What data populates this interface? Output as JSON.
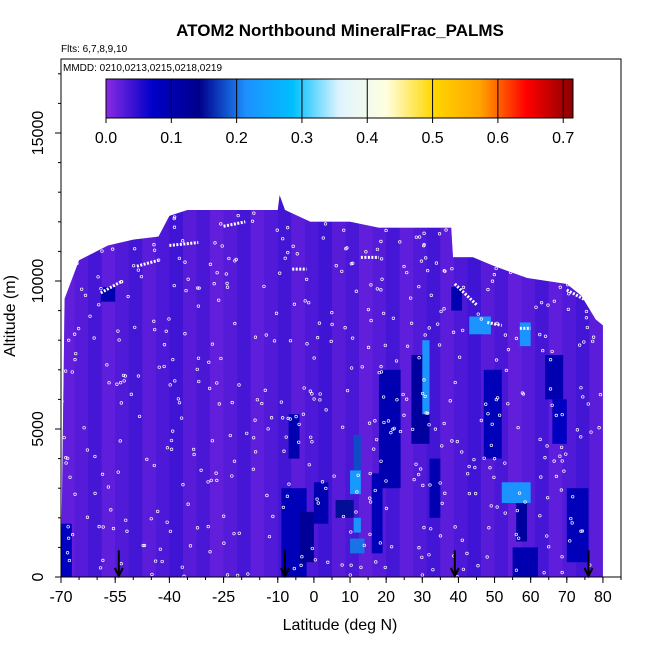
{
  "chart_data": {
    "type": "heatmap",
    "title": "ATOM2 Northbound MineralFrac_PALMS",
    "flights_note": "Flts: 6,7,8,9,10",
    "dates_note": "MMDD: 0210,0213,0215,0218,0219",
    "xlabel": "Latitude (deg N)",
    "ylabel": "Altitude (m)",
    "xlim": [
      -70,
      85
    ],
    "ylim": [
      0,
      17500
    ],
    "xticks": [
      -70,
      -55,
      -40,
      -25,
      -10,
      0,
      10,
      20,
      30,
      40,
      50,
      60,
      70,
      80
    ],
    "xtick_labels": [
      "-70",
      "-55",
      "-40",
      "-25",
      "-10",
      "0",
      "10",
      "20",
      "30",
      "40",
      "50",
      "60",
      "70",
      "80"
    ],
    "yticks": [
      0,
      5000,
      10000,
      15000
    ],
    "ytick_labels": [
      "0",
      "5000",
      "10000",
      "15000"
    ],
    "colorbar": {
      "min": 0.0,
      "max": 0.715,
      "ticks": [
        0.0,
        0.1,
        0.2,
        0.3,
        0.4,
        0.5,
        0.6,
        0.7
      ],
      "tick_labels": [
        "0.0",
        "0.1",
        "0.2",
        "0.3",
        "0.4",
        "0.5",
        "0.6",
        "0.7"
      ],
      "colors": [
        "#8a2be2",
        "#0000c8",
        "#00008b",
        "#1e90ff",
        "#00bfff",
        "#e0f4ff",
        "#ffffe0",
        "#ffd700",
        "#ffa500",
        "#ff0000",
        "#8b0000"
      ]
    },
    "domain_top": [
      [
        -70,
        0
      ],
      [
        -69,
        9400
      ],
      [
        -65,
        10700
      ],
      [
        -57,
        11200
      ],
      [
        -50,
        11400
      ],
      [
        -43,
        11500
      ],
      [
        -40,
        12200
      ],
      [
        -35,
        12400
      ],
      [
        -10,
        12400
      ],
      [
        -9.5,
        12900
      ],
      [
        -8,
        12400
      ],
      [
        -1,
        12000
      ],
      [
        10,
        12000
      ],
      [
        18,
        11800
      ],
      [
        33,
        11800
      ],
      [
        38,
        11800
      ],
      [
        38.5,
        10800
      ],
      [
        44,
        10800
      ],
      [
        50,
        10500
      ],
      [
        59,
        10100
      ],
      [
        70,
        9900
      ],
      [
        74,
        9500
      ],
      [
        78,
        8700
      ],
      [
        80,
        8500
      ],
      [
        80,
        0
      ]
    ],
    "cells": [
      {
        "x": [
          -9,
          -2
        ],
        "y": [
          0,
          3000
        ],
        "v": 0.09
      },
      {
        "x": [
          -7,
          -4
        ],
        "y": [
          4000,
          5500
        ],
        "v": 0.1
      },
      {
        "x": [
          -4,
          0
        ],
        "y": [
          500,
          2200
        ],
        "v": 0.13
      },
      {
        "x": [
          0,
          4
        ],
        "y": [
          1800,
          3200
        ],
        "v": 0.1
      },
      {
        "x": [
          6,
          11
        ],
        "y": [
          2000,
          2600
        ],
        "v": 0.15
      },
      {
        "x": [
          10,
          13
        ],
        "y": [
          2800,
          3600
        ],
        "v": 0.23
      },
      {
        "x": [
          11,
          13
        ],
        "y": [
          3600,
          4800
        ],
        "v": 0.18
      },
      {
        "x": [
          10,
          14
        ],
        "y": [
          800,
          1300
        ],
        "v": 0.2
      },
      {
        "x": [
          11,
          13
        ],
        "y": [
          1500,
          2000
        ],
        "v": 0.22
      },
      {
        "x": [
          16,
          19
        ],
        "y": [
          800,
          3500
        ],
        "v": 0.09
      },
      {
        "x": [
          18,
          24
        ],
        "y": [
          3000,
          7000
        ],
        "v": 0.1
      },
      {
        "x": [
          27,
          32
        ],
        "y": [
          4500,
          7500
        ],
        "v": 0.12
      },
      {
        "x": [
          30,
          32
        ],
        "y": [
          5500,
          8000
        ],
        "v": 0.22
      },
      {
        "x": [
          32,
          35
        ],
        "y": [
          2000,
          4000
        ],
        "v": 0.1
      },
      {
        "x": [
          43,
          49
        ],
        "y": [
          8200,
          8800
        ],
        "v": 0.22
      },
      {
        "x": [
          47,
          52
        ],
        "y": [
          4000,
          7000
        ],
        "v": 0.09
      },
      {
        "x": [
          52,
          60
        ],
        "y": [
          2500,
          3200
        ],
        "v": 0.22
      },
      {
        "x": [
          56,
          59
        ],
        "y": [
          1200,
          2500
        ],
        "v": 0.12
      },
      {
        "x": [
          57,
          60
        ],
        "y": [
          7800,
          8600
        ],
        "v": 0.22
      },
      {
        "x": [
          55,
          62
        ],
        "y": [
          0,
          1000
        ],
        "v": 0.1
      },
      {
        "x": [
          64,
          69
        ],
        "y": [
          6000,
          7500
        ],
        "v": 0.1
      },
      {
        "x": [
          66,
          70
        ],
        "y": [
          4500,
          6000
        ],
        "v": 0.08
      },
      {
        "x": [
          70,
          76
        ],
        "y": [
          500,
          3000
        ],
        "v": 0.09
      },
      {
        "x": [
          -70,
          -67
        ],
        "y": [
          0,
          1800
        ],
        "v": 0.08
      },
      {
        "x": [
          -59,
          -55
        ],
        "y": [
          9300,
          9800
        ],
        "v": 0.1
      },
      {
        "x": [
          38,
          41
        ],
        "y": [
          9000,
          9800
        ],
        "v": 0.1
      }
    ],
    "flight_tracks": [
      {
        "x": [
          -59,
          -53
        ],
        "y": [
          9600,
          10000
        ]
      },
      {
        "x": [
          -49,
          -43
        ],
        "y": [
          10500,
          10700
        ]
      },
      {
        "x": [
          -40,
          -32
        ],
        "y": [
          11200,
          11300
        ]
      },
      {
        "x": [
          -25,
          -19
        ],
        "y": [
          11850,
          12000
        ]
      },
      {
        "x": [
          -6,
          -2
        ],
        "y": [
          10400,
          10400
        ]
      },
      {
        "x": [
          13,
          18
        ],
        "y": [
          10800,
          10800
        ]
      },
      {
        "x": [
          39,
          45
        ],
        "y": [
          9900,
          9200
        ]
      },
      {
        "x": [
          48,
          52
        ],
        "y": [
          8600,
          8500
        ]
      },
      {
        "x": [
          57,
          60
        ],
        "y": [
          8400,
          8400
        ]
      },
      {
        "x": [
          70,
          76
        ],
        "y": [
          9700,
          9300
        ]
      }
    ],
    "arrows_x": [
      -54,
      -8,
      39,
      76
    ]
  }
}
